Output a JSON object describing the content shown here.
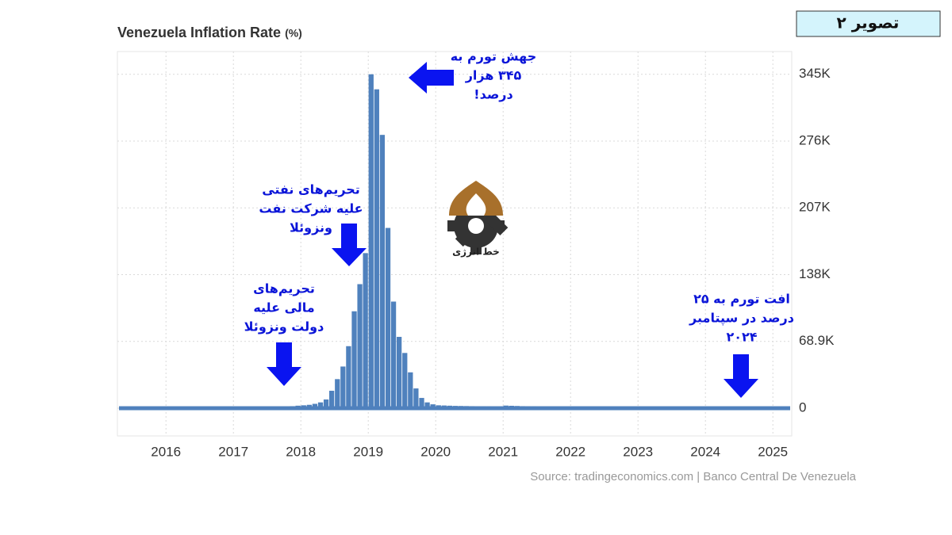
{
  "figure_label": "تصویر ۲",
  "logo_text": "خط انرژی",
  "chart_data": {
    "type": "bar",
    "title": "Venezuela Inflation Rate",
    "title_unit": "(%)",
    "source": "Source: tradingeconomics.com | Banco Central De Venezuela",
    "color": "#4f81bd",
    "grid": true,
    "xlim": [
      2015.28,
      2025.28
    ],
    "xticks": [
      2016,
      2017,
      2018,
      2019,
      2020,
      2021,
      2022,
      2023,
      2024,
      2025
    ],
    "ylim": [
      -28600,
      368000
    ],
    "yticks": [
      0,
      {
        "value": 68902,
        "label": "68.9K"
      },
      {
        "value": 137804,
        "label": "138K"
      },
      {
        "value": 206706,
        "label": "207K"
      },
      {
        "value": 275608,
        "label": "276K"
      },
      {
        "value": 344510,
        "label": "345K"
      }
    ],
    "x": [
      2015.375,
      2015.458,
      2015.542,
      2015.625,
      2015.708,
      2015.792,
      2015.875,
      2015.958,
      2016.042,
      2016.125,
      2016.208,
      2016.292,
      2016.375,
      2016.458,
      2016.542,
      2016.625,
      2016.708,
      2016.792,
      2016.875,
      2016.958,
      2017.042,
      2017.125,
      2017.208,
      2017.292,
      2017.375,
      2017.458,
      2017.542,
      2017.625,
      2017.708,
      2017.792,
      2017.875,
      2017.958,
      2018.042,
      2018.125,
      2018.208,
      2018.292,
      2018.375,
      2018.458,
      2018.542,
      2018.625,
      2018.708,
      2018.792,
      2018.875,
      2018.958,
      2019.042,
      2019.125,
      2019.208,
      2019.292,
      2019.375,
      2019.458,
      2019.542,
      2019.625,
      2019.708,
      2019.792,
      2019.875,
      2019.958,
      2020.042,
      2020.125,
      2020.208,
      2020.292,
      2020.375,
      2020.458,
      2020.542,
      2020.625,
      2020.708,
      2020.792,
      2020.875,
      2020.958,
      2021.042,
      2021.125,
      2021.208,
      2021.292,
      2021.375,
      2021.458,
      2021.542,
      2021.625,
      2021.708,
      2021.792,
      2021.875,
      2021.958,
      2022.042,
      2022.125,
      2022.208,
      2022.292,
      2022.375,
      2022.458,
      2022.542,
      2022.625,
      2022.708,
      2022.792,
      2022.875,
      2022.958,
      2023.042,
      2023.125,
      2023.208,
      2023.292,
      2023.375,
      2023.458,
      2023.542,
      2023.625,
      2023.708,
      2023.792,
      2023.875,
      2023.958,
      2024.042,
      2024.125,
      2024.208,
      2024.292,
      2024.375,
      2024.458,
      2024.542,
      2024.625,
      2024.708,
      2024.792,
      2024.875,
      2024.958,
      2025.042,
      2025.125,
      2025.208
    ],
    "values": [
      100,
      110,
      120,
      130,
      140,
      150,
      170,
      180,
      200,
      230,
      260,
      290,
      320,
      360,
      400,
      450,
      500,
      550,
      600,
      650,
      700,
      750,
      800,
      900,
      1000,
      1100,
      1200,
      1400,
      1600,
      1800,
      2100,
      2600,
      3000,
      3500,
      4500,
      6000,
      9000,
      18000,
      30000,
      43000,
      64000,
      100000,
      128000,
      160000,
      344509,
      329000,
      282000,
      186000,
      110000,
      73600,
      57000,
      37000,
      20400,
      10600,
      6000,
      4000,
      3000,
      2800,
      2600,
      2400,
      2300,
      2200,
      2100,
      2000,
      1900,
      1850,
      1800,
      1700,
      2700,
      2500,
      2300,
      2100,
      2000,
      1900,
      1700,
      1500,
      1300,
      1000,
      800,
      686,
      500,
      350,
      280,
      220,
      180,
      160,
      140,
      120,
      115,
      150,
      160,
      234,
      300,
      370,
      430,
      440,
      400,
      400,
      400,
      400,
      400,
      320,
      280,
      190,
      100,
      80,
      60,
      52,
      50,
      51,
      51,
      34,
      25,
      25,
      25,
      48,
      40,
      50,
      80
    ],
    "annotations": [
      {
        "lines": [
          "جهش تورم به",
          "۳۴۵ هزار",
          "درصد!"
        ]
      },
      {
        "lines": [
          "تحریم‌های نفتی",
          "علیه شرکت نفت",
          "ونزوئلا"
        ]
      },
      {
        "lines": [
          "تحریم‌های",
          "مالی علیه",
          "دولت ونزوئلا"
        ]
      },
      {
        "lines": [
          "افت تورم به ۲۵",
          "درصد در سپتامبر",
          "۲۰۲۴"
        ]
      }
    ]
  }
}
